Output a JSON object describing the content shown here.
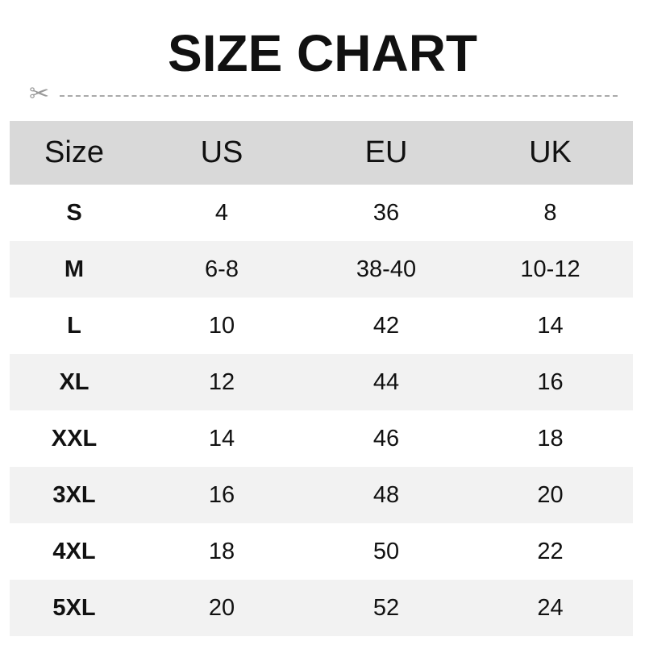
{
  "title": "SIZE CHART",
  "icons": {
    "cut": "scissors-icon"
  },
  "colors": {
    "header_bg": "#d9d9d9",
    "alt_row_bg": "#f2f2f2",
    "divider": "#aaaaaa"
  },
  "table": {
    "headers": [
      "Size",
      "US",
      "EU",
      "UK"
    ],
    "rows": [
      [
        "S",
        "4",
        "36",
        "8"
      ],
      [
        "M",
        "6-8",
        "38-40",
        "10-12"
      ],
      [
        "L",
        "10",
        "42",
        "14"
      ],
      [
        "XL",
        "12",
        "44",
        "16"
      ],
      [
        "XXL",
        "14",
        "46",
        "18"
      ],
      [
        "3XL",
        "16",
        "48",
        "20"
      ],
      [
        "4XL",
        "18",
        "50",
        "22"
      ],
      [
        "5XL",
        "20",
        "52",
        "24"
      ]
    ]
  }
}
